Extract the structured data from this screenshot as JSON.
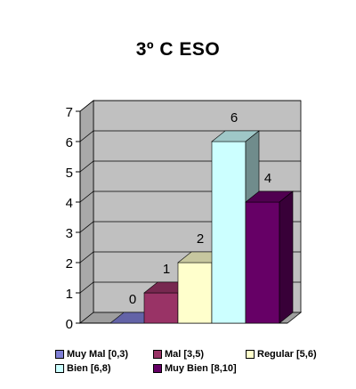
{
  "chart_data": {
    "type": "bar",
    "title": "3º C ESO",
    "categories": [
      "Muy Mal [0,3)",
      "Mal [3,5)",
      "Regular [5,6)",
      "Bien [6,8)",
      "Muy Bien [8,10]"
    ],
    "values": [
      0,
      1,
      2,
      6,
      4
    ],
    "value_labels": [
      "0",
      "1",
      "2",
      "6",
      "4"
    ],
    "colors": [
      "#7f7fd6",
      "#993366",
      "#ffffcc",
      "#ccffff",
      "#660066"
    ],
    "y_ticks": [
      "0",
      "1",
      "2",
      "3",
      "4",
      "5",
      "6",
      "7"
    ],
    "ylim": [
      0,
      7
    ],
    "grid": true,
    "legend_position": "bottom",
    "style": "3d-column"
  }
}
